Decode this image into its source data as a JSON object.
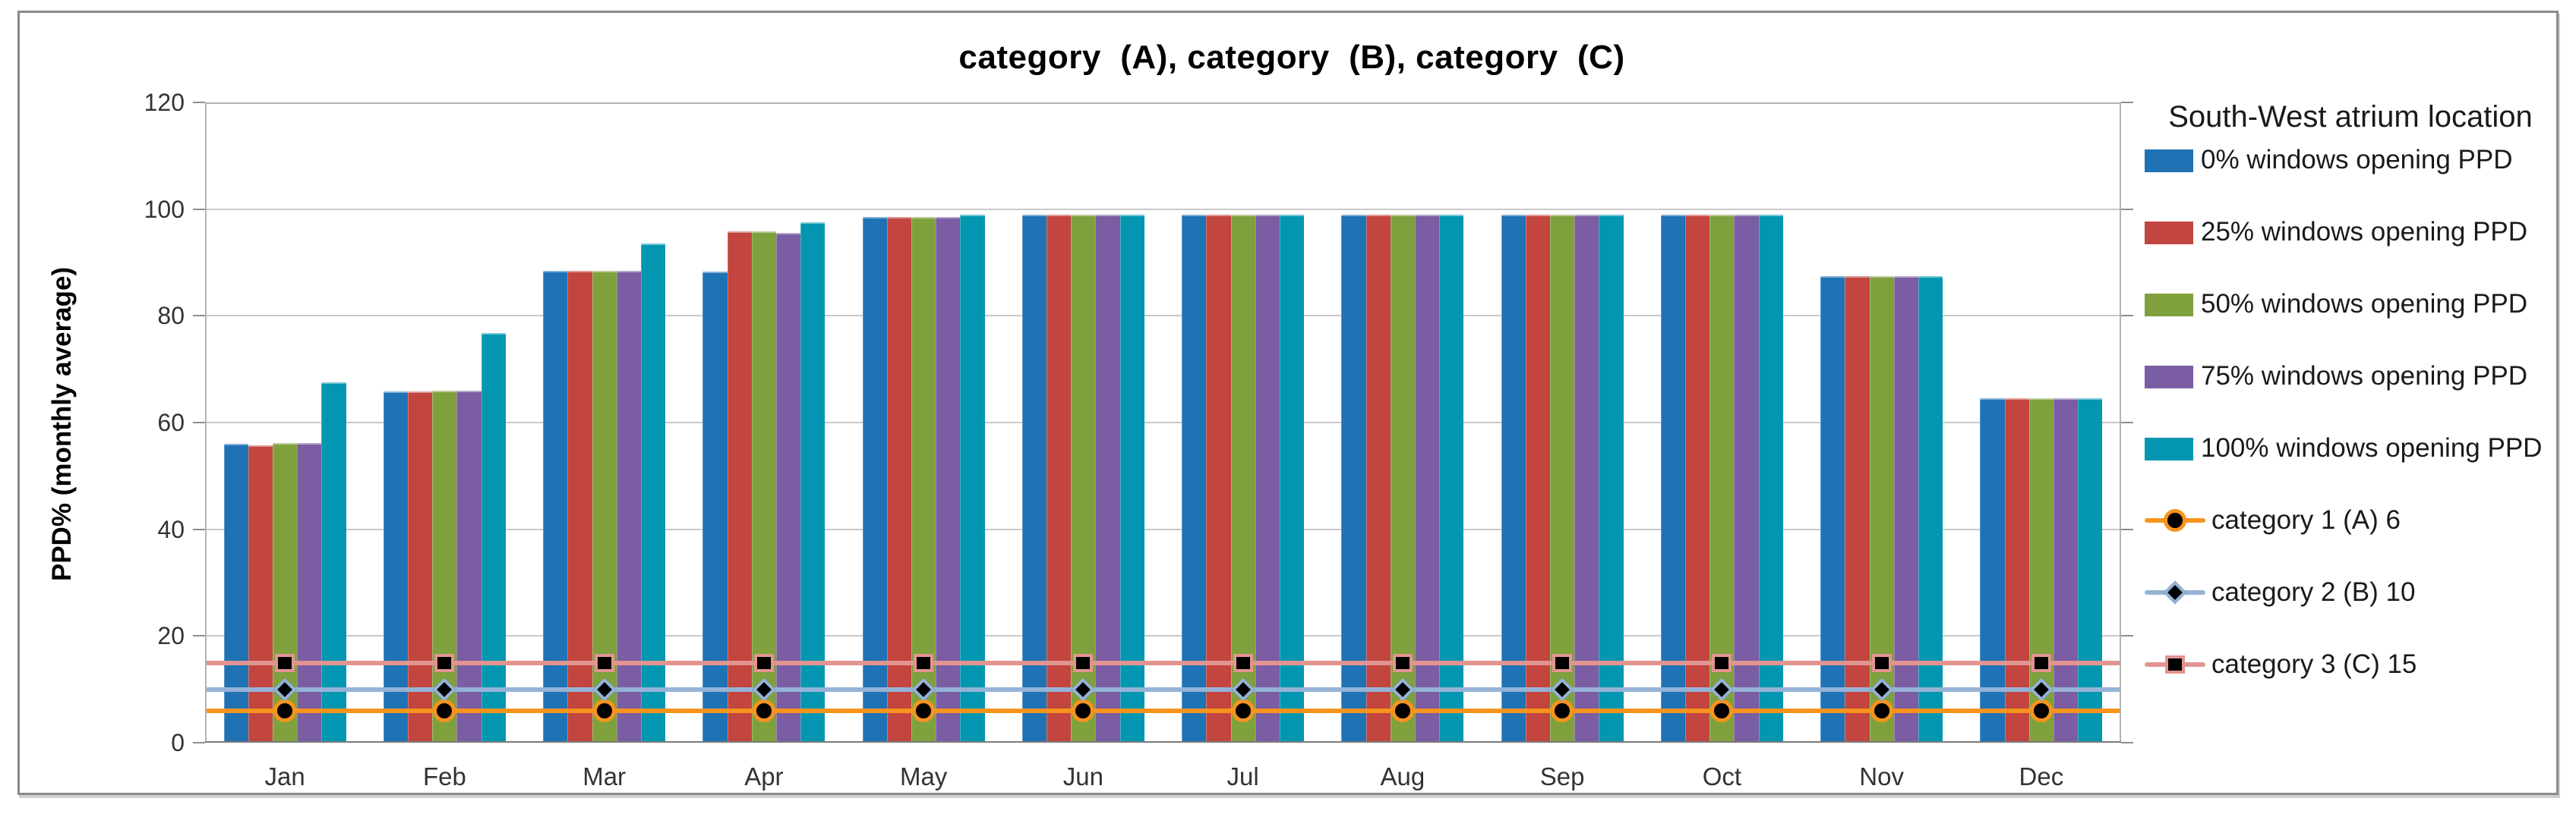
{
  "chart_data": {
    "type": "bar",
    "title": "category  (A), category  (B), category  (C)",
    "ylabel": "PPD% (monthly average)",
    "ylim": [
      0,
      120
    ],
    "yticks": [
      0,
      20,
      40,
      60,
      80,
      100,
      120
    ],
    "grid": true,
    "categories": [
      "Jan",
      "Feb",
      "Mar",
      "Apr",
      "May",
      "Jun",
      "Jul",
      "Aug",
      "Sep",
      "Oct",
      "Nov",
      "Dec"
    ],
    "series": [
      {
        "key": "0pct",
        "name": "0% windows opening PPD",
        "color": "#1f72b4",
        "values": [
          56.0,
          65.8,
          88.4,
          88.3,
          98.6,
          99.0,
          99.0,
          99.0,
          99.0,
          99.0,
          87.5,
          64.6
        ]
      },
      {
        "key": "25pct",
        "name": "25% windows opening PPD",
        "color": "#c2453f",
        "values": [
          55.7,
          65.9,
          88.4,
          95.8,
          98.6,
          99.0,
          99.0,
          99.0,
          99.0,
          99.0,
          87.5,
          64.6
        ]
      },
      {
        "key": "50pct",
        "name": "50% windows opening PPD",
        "color": "#7fa13d",
        "values": [
          56.2,
          66.0,
          88.4,
          95.8,
          98.6,
          99.0,
          99.0,
          99.0,
          99.0,
          99.0,
          87.5,
          64.6
        ]
      },
      {
        "key": "75pct",
        "name": "75% windows opening PPD",
        "color": "#7a5da2",
        "values": [
          56.2,
          66.0,
          88.4,
          95.6,
          98.6,
          99.0,
          99.0,
          99.0,
          99.0,
          99.0,
          87.5,
          64.6
        ]
      },
      {
        "key": "100pct",
        "name": "100% windows opening PPD",
        "color": "#0396b0",
        "values": [
          67.5,
          76.8,
          93.6,
          97.6,
          99.0,
          99.0,
          99.0,
          99.0,
          99.0,
          99.0,
          87.5,
          64.6
        ]
      }
    ],
    "line_series": [
      {
        "key": "cat1",
        "name": "category 1 (A) 6",
        "color": "#f7941e",
        "marker": "circle",
        "value": 6
      },
      {
        "key": "cat2",
        "name": "category 2 (B) 10",
        "color": "#95b3d7",
        "marker": "diamond",
        "value": 10
      },
      {
        "key": "cat3",
        "name": "category 3 (C) 15",
        "color": "#e29490",
        "marker": "square",
        "value": 15
      }
    ],
    "legend": {
      "title": "South-West atrium location",
      "position": "right"
    }
  }
}
